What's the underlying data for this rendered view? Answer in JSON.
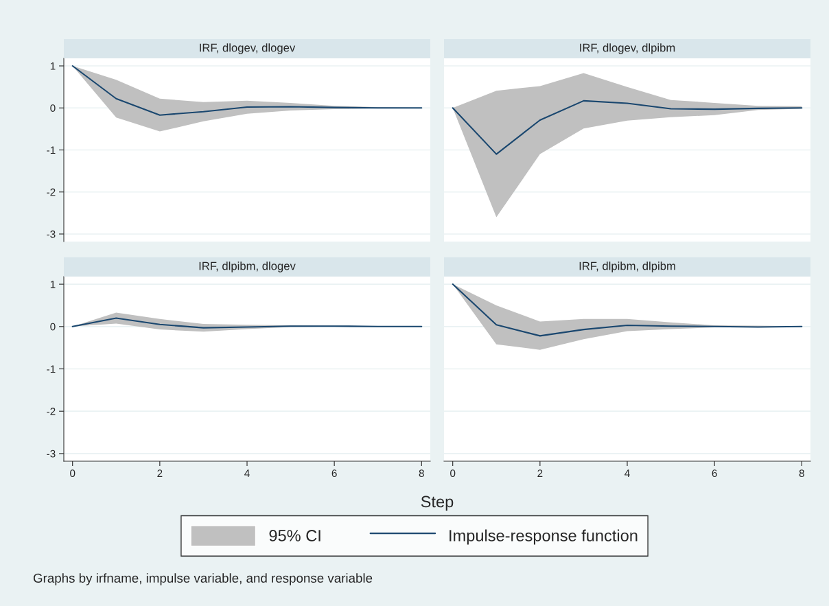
{
  "chart_data": [
    {
      "type": "line",
      "title": "IRF, dlogev, dlogev",
      "x": [
        0,
        1,
        2,
        3,
        4,
        5,
        6,
        7,
        8
      ],
      "xlim": [
        -0.2,
        8.2
      ],
      "xticks": [
        0,
        2,
        4,
        6,
        8
      ],
      "ylim": [
        -3.18,
        1.18
      ],
      "yticks": [
        -3,
        -2,
        -1,
        0,
        1
      ],
      "grid": "y",
      "tick_labels": "y",
      "legend": "bottom",
      "annotations": [
        "95% CI",
        "Graphs by irfname, impulse variable, and response variable"
      ],
      "series": [
        {
          "name": "Impulse-response function",
          "type": "line",
          "color": "#1a476f",
          "values": [
            1,
            0.22,
            -0.17,
            -0.09,
            0.02,
            0.03,
            0.01,
            0,
            0
          ],
          "lower": [
            1,
            -0.23,
            -0.56,
            -0.32,
            -0.14,
            -0.06,
            -0.03,
            -0.01,
            0
          ],
          "upper": [
            1,
            0.67,
            0.22,
            0.14,
            0.17,
            0.12,
            0.05,
            0.02,
            0
          ]
        }
      ]
    },
    {
      "type": "line",
      "title": "IRF, dlogev, dlpibm",
      "x": [
        0,
        1,
        2,
        3,
        4,
        5,
        6,
        7,
        8
      ],
      "xlim": [
        -0.2,
        8.2
      ],
      "xticks": [
        0,
        2,
        4,
        6,
        8
      ],
      "ylim": [
        -3.18,
        1.18
      ],
      "yticks": [
        -3,
        -2,
        -1,
        0,
        1
      ],
      "grid": "y",
      "tick_labels": false,
      "series": [
        {
          "type": "line",
          "color": "#1a476f",
          "values": [
            0,
            -1.1,
            -0.29,
            0.17,
            0.11,
            -0.02,
            -0.03,
            -0.01,
            0
          ],
          "lower": [
            0,
            -2.6,
            -1.1,
            -0.49,
            -0.3,
            -0.22,
            -0.17,
            -0.05,
            -0.02
          ],
          "upper": [
            0,
            0.41,
            0.52,
            0.83,
            0.5,
            0.19,
            0.12,
            0.05,
            0.04
          ]
        }
      ]
    },
    {
      "type": "line",
      "title": "IRF, dlpibm, dlogev",
      "x": [
        0,
        1,
        2,
        3,
        4,
        5,
        6,
        7,
        8
      ],
      "xlim": [
        -0.2,
        8.2
      ],
      "xticks": [
        0,
        2,
        4,
        6,
        8
      ],
      "ylim": [
        -3.18,
        1.18
      ],
      "yticks": [
        -3,
        -2,
        -1,
        0,
        1
      ],
      "grid": "y",
      "xlabel": "Step",
      "series": [
        {
          "type": "line",
          "color": "#1a476f",
          "values": [
            0,
            0.2,
            0.05,
            -0.03,
            -0.01,
            0.01,
            0.01,
            0,
            0
          ],
          "lower": [
            0,
            0.07,
            -0.07,
            -0.12,
            -0.06,
            -0.01,
            0,
            0,
            0
          ],
          "upper": [
            0,
            0.33,
            0.18,
            0.06,
            0.04,
            0.03,
            0.02,
            0.01,
            0
          ]
        }
      ]
    },
    {
      "type": "line",
      "title": "IRF, dlpibm, dlpibm",
      "x": [
        0,
        1,
        2,
        3,
        4,
        5,
        6,
        7,
        8
      ],
      "xlim": [
        -0.2,
        8.2
      ],
      "xticks": [
        0,
        2,
        4,
        6,
        8
      ],
      "ylim": [
        -3.18,
        1.18
      ],
      "yticks": [
        -3,
        -2,
        -1,
        0,
        1
      ],
      "grid": "y",
      "tick_labels": "x",
      "series": [
        {
          "type": "line",
          "color": "#1a476f",
          "values": [
            1,
            0.04,
            -0.22,
            -0.07,
            0.03,
            0.01,
            0,
            -0.01,
            0
          ],
          "lower": [
            1,
            -0.42,
            -0.55,
            -0.3,
            -0.11,
            -0.06,
            -0.02,
            -0.01,
            0
          ],
          "upper": [
            1,
            0.5,
            0.12,
            0.18,
            0.18,
            0.1,
            0.03,
            0.02,
            0.01
          ]
        }
      ]
    }
  ]
}
